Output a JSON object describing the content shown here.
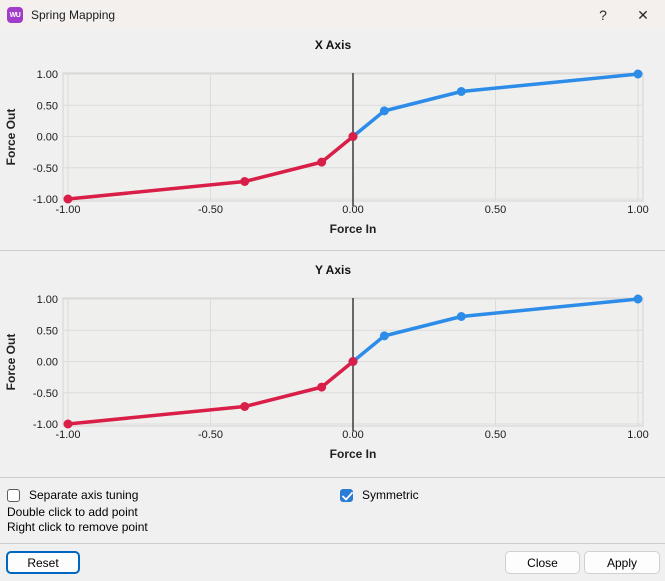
{
  "window": {
    "title": "Spring Mapping",
    "icon_glyph": "WU",
    "icon_name": "app-logo-icon",
    "help_glyph": "?",
    "close_glyph": "✕"
  },
  "colors": {
    "line_red": "#d91e47",
    "line_blue": "#2d8ce8",
    "checkbox_accent": "#2a7cd4",
    "focus_blue": "#0067c0",
    "icon_purple": "#a13dc9",
    "zero_line": "#3c3c3c"
  },
  "chart_data": [
    {
      "type": "line",
      "title": "X Axis",
      "xlabel": "Force In",
      "ylabel": "Force Out",
      "xlim": [
        -1,
        1
      ],
      "ylim": [
        -1,
        1
      ],
      "xticks": [
        -1,
        -0.5,
        0,
        0.5,
        1
      ],
      "yticks": [
        1,
        0.5,
        0,
        -0.5,
        -1
      ],
      "grid": true,
      "legend": "none",
      "zero_line_x": 0,
      "series": [
        {
          "name": "negative",
          "color": "#d91e47",
          "points": [
            [
              -1,
              -1
            ],
            [
              -0.38,
              -0.72
            ],
            [
              -0.11,
              -0.41
            ],
            [
              0,
              0
            ]
          ]
        },
        {
          "name": "positive",
          "color": "#2d8ce8",
          "points": [
            [
              0,
              0
            ],
            [
              0.11,
              0.41
            ],
            [
              0.38,
              0.72
            ],
            [
              1,
              1
            ]
          ]
        }
      ]
    },
    {
      "type": "line",
      "title": "Y Axis",
      "xlabel": "Force In",
      "ylabel": "Force Out",
      "xlim": [
        -1,
        1
      ],
      "ylim": [
        -1,
        1
      ],
      "xticks": [
        -1,
        -0.5,
        0,
        0.5,
        1
      ],
      "yticks": [
        1,
        0.5,
        0,
        -0.5,
        -1
      ],
      "grid": true,
      "legend": "none",
      "zero_line_x": 0,
      "series": [
        {
          "name": "negative",
          "color": "#d91e47",
          "points": [
            [
              -1,
              -1
            ],
            [
              -0.38,
              -0.72
            ],
            [
              -0.11,
              -0.41
            ],
            [
              0,
              0
            ]
          ]
        },
        {
          "name": "positive",
          "color": "#2d8ce8",
          "points": [
            [
              0,
              0
            ],
            [
              0.11,
              0.41
            ],
            [
              0.38,
              0.72
            ],
            [
              1,
              1
            ]
          ]
        }
      ]
    }
  ],
  "footer": {
    "separate_axis_label": "Separate axis tuning",
    "separate_axis_checked": false,
    "symmetric_label": "Symmetric",
    "symmetric_checked": true,
    "hint_line1": "Double click to add point",
    "hint_line2": "Right click to remove point"
  },
  "buttons": {
    "reset": "Reset",
    "close": "Close",
    "apply": "Apply"
  }
}
